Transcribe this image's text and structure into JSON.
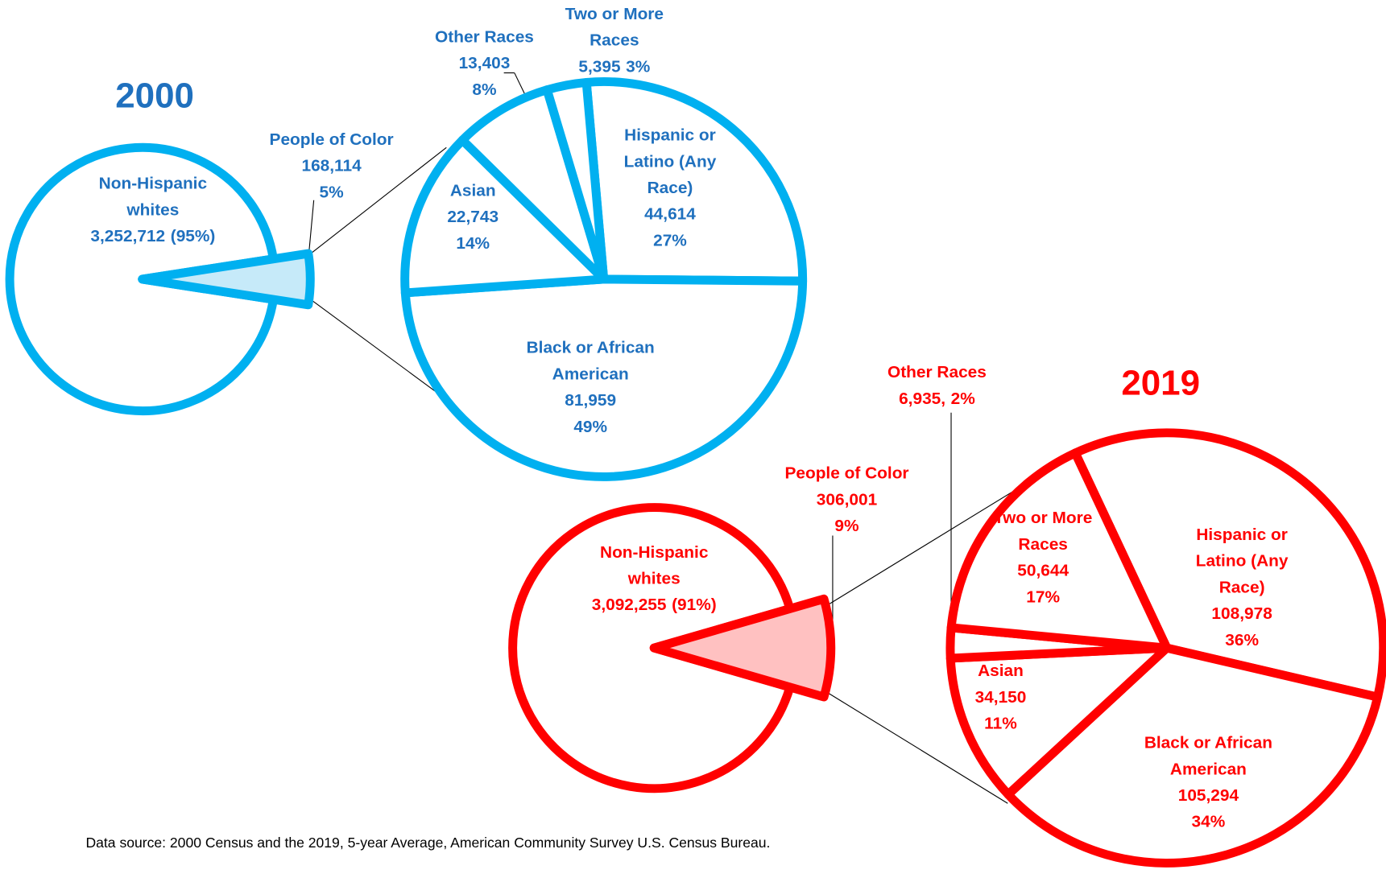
{
  "chart_data": [
    {
      "type": "pie-of-pie",
      "title": "2000",
      "color": "#00b0f0",
      "text_color": "#1f70be",
      "highlight_color": "#c6eaf9",
      "categories": [
        "Non-Hispanic whites",
        "People of Color"
      ],
      "values": [
        3252712,
        168114
      ],
      "value_labels": [
        "3,252,712",
        "168,114"
      ],
      "percents": [
        95,
        5
      ],
      "percent_labels": [
        "(95%)",
        "5%"
      ],
      "breakdown": {
        "categories": [
          "Hispanic or Latino (Any Race)",
          "Black or African American",
          "Asian",
          "Other Races",
          "Two or More Races"
        ],
        "values": [
          44614,
          81959,
          22743,
          13403,
          5395
        ],
        "value_labels": [
          "44,614",
          "81,959",
          "22,743",
          "13,403",
          "5,395"
        ],
        "percents": [
          27,
          49,
          14,
          8,
          3
        ],
        "percent_labels": [
          "27%",
          "49%",
          "14%",
          "8%",
          "3%"
        ]
      }
    },
    {
      "type": "pie-of-pie",
      "title": "2019",
      "color": "#ff0000",
      "text_color": "#ff0000",
      "highlight_color": "#ffc1c1",
      "categories": [
        "Non-Hispanic whites",
        "People of Color"
      ],
      "values": [
        3092255,
        306001
      ],
      "value_labels": [
        "3,092,255",
        "306,001"
      ],
      "percents": [
        91,
        9
      ],
      "percent_labels": [
        "(91%)",
        "9%"
      ],
      "breakdown": {
        "categories": [
          "Hispanic or Latino (Any Race)",
          "Black or African American",
          "Asian",
          "Other Races",
          "Two or More Races"
        ],
        "values": [
          108978,
          105294,
          34150,
          6935,
          50644
        ],
        "value_labels": [
          "108,978",
          "105,294",
          "34,150",
          "6,935,",
          "50,644"
        ],
        "percents": [
          36,
          34,
          11,
          2,
          17
        ],
        "percent_labels": [
          "36%",
          "34%",
          "11%",
          "2%",
          "17%"
        ]
      }
    }
  ],
  "source": "Data source: 2000 Census and the 2019, 5-year Average, American Community Survey U.S. Census Bureau."
}
